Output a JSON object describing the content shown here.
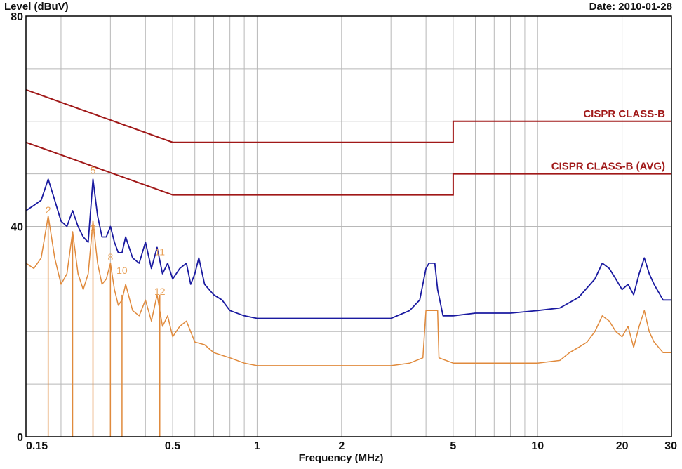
{
  "header": {
    "y_title": "Level (dBuV)",
    "date": "Date: 2010-01-28"
  },
  "footer": {
    "x_title": "Frequency (MHz)"
  },
  "colors": {
    "qp_trace": "#1a1aa0",
    "avg_trace": "#e08a3c",
    "limit": "#a01818",
    "grid": "#b8b8b8",
    "marker_text": "#e8a25a"
  },
  "chart_data": {
    "type": "line",
    "xlabel": "Frequency (MHz)",
    "ylabel": "Level (dBuV)",
    "x_scale": "log",
    "xlim": [
      0.15,
      30
    ],
    "ylim": [
      0,
      80
    ],
    "grid": true,
    "x_ticks": [
      {
        "v": 0.15,
        "label": "0.15"
      },
      {
        "v": 0.5,
        "label": "0.5"
      },
      {
        "v": 1,
        "label": "1"
      },
      {
        "v": 2,
        "label": "2"
      },
      {
        "v": 5,
        "label": "5"
      },
      {
        "v": 10,
        "label": "10"
      },
      {
        "v": 20,
        "label": "20"
      },
      {
        "v": 30,
        "label": "30"
      }
    ],
    "y_ticks": [
      {
        "v": 0,
        "label": "0"
      },
      {
        "v": 40,
        "label": "40"
      },
      {
        "v": 80,
        "label": "80"
      }
    ],
    "limits": [
      {
        "name": "CISPR CLASS-B",
        "color": "#a01818",
        "points": [
          [
            0.15,
            66
          ],
          [
            0.5,
            56
          ],
          [
            5,
            56
          ],
          [
            5,
            60
          ],
          [
            30,
            60
          ]
        ]
      },
      {
        "name": "CISPR CLASS-B (AVG)",
        "color": "#a01818",
        "points": [
          [
            0.15,
            56
          ],
          [
            0.5,
            46
          ],
          [
            5,
            46
          ],
          [
            5,
            50
          ],
          [
            30,
            50
          ]
        ]
      }
    ],
    "series": [
      {
        "color": "#1a1aa0",
        "points": [
          [
            0.15,
            43
          ],
          [
            0.16,
            44
          ],
          [
            0.17,
            45
          ],
          [
            0.18,
            49
          ],
          [
            0.19,
            45
          ],
          [
            0.2,
            41
          ],
          [
            0.21,
            40
          ],
          [
            0.22,
            43
          ],
          [
            0.23,
            40
          ],
          [
            0.24,
            38
          ],
          [
            0.25,
            37
          ],
          [
            0.26,
            49
          ],
          [
            0.27,
            42
          ],
          [
            0.28,
            38
          ],
          [
            0.29,
            38
          ],
          [
            0.3,
            40
          ],
          [
            0.31,
            37
          ],
          [
            0.32,
            35
          ],
          [
            0.33,
            35
          ],
          [
            0.34,
            38
          ],
          [
            0.36,
            34
          ],
          [
            0.38,
            33
          ],
          [
            0.4,
            37
          ],
          [
            0.42,
            32
          ],
          [
            0.44,
            36
          ],
          [
            0.46,
            31
          ],
          [
            0.48,
            33
          ],
          [
            0.5,
            30
          ],
          [
            0.53,
            32
          ],
          [
            0.56,
            33
          ],
          [
            0.58,
            29
          ],
          [
            0.6,
            31
          ],
          [
            0.62,
            34
          ],
          [
            0.65,
            29
          ],
          [
            0.7,
            27
          ],
          [
            0.75,
            26
          ],
          [
            0.8,
            24
          ],
          [
            0.9,
            23
          ],
          [
            1.0,
            22.5
          ],
          [
            1.2,
            22.5
          ],
          [
            1.5,
            22.5
          ],
          [
            2.0,
            22.5
          ],
          [
            2.5,
            22.5
          ],
          [
            3.0,
            22.5
          ],
          [
            3.5,
            24
          ],
          [
            3.8,
            26
          ],
          [
            4.0,
            32
          ],
          [
            4.1,
            33
          ],
          [
            4.3,
            33
          ],
          [
            4.4,
            28
          ],
          [
            4.6,
            23
          ],
          [
            5.0,
            23
          ],
          [
            6.0,
            23.5
          ],
          [
            7.0,
            23.5
          ],
          [
            8.0,
            23.5
          ],
          [
            10,
            24
          ],
          [
            12,
            24.5
          ],
          [
            14,
            26.5
          ],
          [
            16,
            30
          ],
          [
            17,
            33
          ],
          [
            18,
            32
          ],
          [
            19,
            30
          ],
          [
            20,
            28
          ],
          [
            21,
            29
          ],
          [
            22,
            27
          ],
          [
            23,
            31
          ],
          [
            24,
            34
          ],
          [
            25,
            31
          ],
          [
            26,
            29
          ],
          [
            28,
            26
          ],
          [
            30,
            26
          ]
        ]
      },
      {
        "color": "#e08a3c",
        "points": [
          [
            0.15,
            33
          ],
          [
            0.16,
            32
          ],
          [
            0.17,
            34
          ],
          [
            0.18,
            42
          ],
          [
            0.19,
            34
          ],
          [
            0.2,
            29
          ],
          [
            0.21,
            31
          ],
          [
            0.22,
            39
          ],
          [
            0.23,
            31
          ],
          [
            0.24,
            28
          ],
          [
            0.25,
            31
          ],
          [
            0.26,
            41
          ],
          [
            0.27,
            33
          ],
          [
            0.28,
            29
          ],
          [
            0.29,
            30
          ],
          [
            0.3,
            33
          ],
          [
            0.31,
            28
          ],
          [
            0.32,
            25
          ],
          [
            0.33,
            26
          ],
          [
            0.34,
            29
          ],
          [
            0.36,
            24
          ],
          [
            0.38,
            23
          ],
          [
            0.4,
            26
          ],
          [
            0.42,
            22
          ],
          [
            0.44,
            27
          ],
          [
            0.46,
            21
          ],
          [
            0.48,
            23
          ],
          [
            0.5,
            19
          ],
          [
            0.53,
            21
          ],
          [
            0.56,
            22
          ],
          [
            0.6,
            18
          ],
          [
            0.65,
            17.5
          ],
          [
            0.7,
            16
          ],
          [
            0.8,
            15
          ],
          [
            0.9,
            14
          ],
          [
            1.0,
            13.5
          ],
          [
            1.5,
            13.5
          ],
          [
            2.0,
            13.5
          ],
          [
            3.0,
            13.5
          ],
          [
            3.5,
            14
          ],
          [
            3.9,
            15
          ],
          [
            4.0,
            24
          ],
          [
            4.4,
            24
          ],
          [
            4.45,
            15
          ],
          [
            5.0,
            14
          ],
          [
            6.0,
            14
          ],
          [
            8.0,
            14
          ],
          [
            10,
            14
          ],
          [
            12,
            14.5
          ],
          [
            13,
            16
          ],
          [
            14,
            17
          ],
          [
            15,
            18
          ],
          [
            16,
            20
          ],
          [
            17,
            23
          ],
          [
            18,
            22
          ],
          [
            19,
            20
          ],
          [
            20,
            19
          ],
          [
            21,
            21
          ],
          [
            22,
            17
          ],
          [
            23,
            21
          ],
          [
            24,
            24
          ],
          [
            25,
            20
          ],
          [
            26,
            18
          ],
          [
            28,
            16
          ],
          [
            30,
            16
          ]
        ]
      }
    ],
    "marker_lines": [
      {
        "x": 0.18,
        "y": 41
      },
      {
        "x": 0.22,
        "y": 39
      },
      {
        "x": 0.26,
        "y": 41
      },
      {
        "x": 0.3,
        "y": 33
      },
      {
        "x": 0.33,
        "y": 27
      },
      {
        "x": 0.45,
        "y": 27
      }
    ],
    "markers": [
      {
        "label": "2",
        "x": 0.18,
        "y": 42.5
      },
      {
        "label": "5",
        "x": 0.26,
        "y": 50
      },
      {
        "label": "3",
        "x": 0.26,
        "y": 39
      },
      {
        "label": "8",
        "x": 0.3,
        "y": 33.5
      },
      {
        "label": "10",
        "x": 0.33,
        "y": 31
      },
      {
        "label": "11",
        "x": 0.45,
        "y": 34.5
      },
      {
        "label": "12",
        "x": 0.45,
        "y": 27
      }
    ]
  }
}
